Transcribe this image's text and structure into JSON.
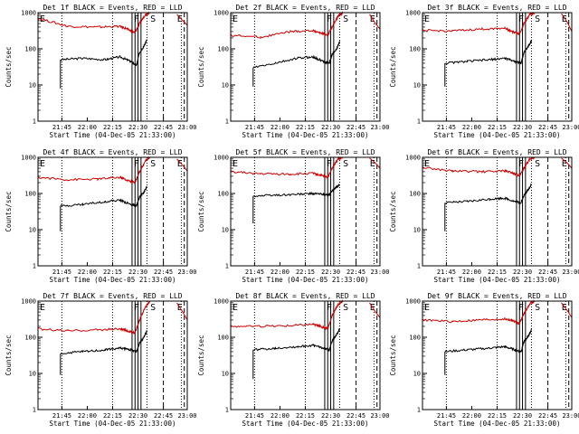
{
  "chart_data": [
    {
      "type": "line",
      "title": "Det 1f BLACK = Events, RED = LLD",
      "xlabel": "Start Time (04-Dec-05 21:33:00)",
      "ylabel": "Counts/sec",
      "yscale": "log",
      "ylim": [
        1,
        1000
      ],
      "x_ticks": [
        "21:45",
        "22:00",
        "22:15",
        "22:30",
        "22:45",
        "23:00"
      ],
      "y_ticks": [
        "1",
        "10",
        "100",
        "1000"
      ],
      "region_marks": [
        "F",
        "S",
        "E"
      ],
      "series": [
        {
          "color": "#000000",
          "keypoints": [
            [
              0.15,
              50
            ],
            [
              0.3,
              55
            ],
            [
              0.45,
              50
            ],
            [
              0.55,
              60
            ],
            [
              0.62,
              45
            ],
            [
              0.66,
              35
            ],
            [
              0.68,
              80
            ],
            [
              0.71,
              120
            ],
            [
              0.73,
              180
            ]
          ],
          "start_drop": 8
        },
        {
          "color": "#cc0000",
          "keypoints": [
            [
              0.0,
              700
            ],
            [
              0.2,
              420
            ],
            [
              0.4,
              400
            ],
            [
              0.55,
              420
            ],
            [
              0.6,
              350
            ],
            [
              0.65,
              280
            ],
            [
              0.68,
              500
            ],
            [
              0.72,
              900
            ],
            [
              0.75,
              1000
            ]
          ],
          "tail": [
            [
              0.93,
              900
            ],
            [
              0.97,
              600
            ],
            [
              1.0,
              450
            ]
          ]
        }
      ]
    },
    {
      "type": "line",
      "title": "Det 2f BLACK = Events, RED = LLD",
      "xlabel": "Start Time (04-Dec-05 21:33:00)",
      "ylabel": "Counts/sec",
      "yscale": "log",
      "ylim": [
        1,
        1000
      ],
      "x_ticks": [
        "21:45",
        "22:00",
        "22:15",
        "22:30",
        "22:45",
        "23:00"
      ],
      "y_ticks": [
        "1",
        "10",
        "100",
        "1000"
      ],
      "region_marks": [
        "F",
        "S",
        "E"
      ],
      "series": [
        {
          "color": "#000000",
          "keypoints": [
            [
              0.15,
              30
            ],
            [
              0.3,
              40
            ],
            [
              0.45,
              55
            ],
            [
              0.55,
              60
            ],
            [
              0.62,
              45
            ],
            [
              0.66,
              40
            ],
            [
              0.68,
              70
            ],
            [
              0.71,
              100
            ],
            [
              0.73,
              160
            ]
          ],
          "start_drop": 9
        },
        {
          "color": "#cc0000",
          "keypoints": [
            [
              0.0,
              240
            ],
            [
              0.2,
              210
            ],
            [
              0.4,
              300
            ],
            [
              0.55,
              320
            ],
            [
              0.6,
              280
            ],
            [
              0.65,
              230
            ],
            [
              0.68,
              400
            ],
            [
              0.72,
              800
            ],
            [
              0.75,
              1000
            ]
          ],
          "tail": [
            [
              0.93,
              900
            ],
            [
              0.97,
              500
            ],
            [
              1.0,
              350
            ]
          ]
        }
      ]
    },
    {
      "type": "line",
      "title": "Det 3f BLACK = Events, RED = LLD",
      "xlabel": "Start Time (04-Dec-05 21:33:00)",
      "ylabel": "Counts/sec",
      "yscale": "log",
      "ylim": [
        1,
        1000
      ],
      "x_ticks": [
        "21:45",
        "22:00",
        "22:15",
        "22:30",
        "22:45",
        "23:00"
      ],
      "y_ticks": [
        "1",
        "10",
        "100",
        "1000"
      ],
      "region_marks": [
        "F",
        "S",
        "E"
      ],
      "series": [
        {
          "color": "#000000",
          "keypoints": [
            [
              0.15,
              40
            ],
            [
              0.3,
              45
            ],
            [
              0.45,
              50
            ],
            [
              0.55,
              55
            ],
            [
              0.62,
              45
            ],
            [
              0.66,
              40
            ],
            [
              0.68,
              80
            ],
            [
              0.71,
              120
            ],
            [
              0.73,
              170
            ]
          ],
          "start_drop": 9
        },
        {
          "color": "#cc0000",
          "keypoints": [
            [
              0.0,
              320
            ],
            [
              0.2,
              310
            ],
            [
              0.4,
              350
            ],
            [
              0.55,
              380
            ],
            [
              0.6,
              300
            ],
            [
              0.65,
              260
            ],
            [
              0.68,
              500
            ],
            [
              0.72,
              900
            ],
            [
              0.75,
              1000
            ]
          ],
          "tail": [
            [
              0.93,
              950
            ],
            [
              0.97,
              550
            ],
            [
              1.0,
              300
            ]
          ]
        }
      ]
    },
    {
      "type": "line",
      "title": "Det 4f BLACK = Events, RED = LLD",
      "xlabel": "Start Time (04-Dec-05 21:33:00)",
      "ylabel": "Counts/sec",
      "yscale": "log",
      "ylim": [
        1,
        1000
      ],
      "x_ticks": [
        "21:45",
        "22:00",
        "22:15",
        "22:30",
        "22:45",
        "23:00"
      ],
      "y_ticks": [
        "1",
        "10",
        "100",
        "1000"
      ],
      "region_marks": [
        "F",
        "S",
        "E"
      ],
      "series": [
        {
          "color": "#000000",
          "keypoints": [
            [
              0.15,
              45
            ],
            [
              0.3,
              50
            ],
            [
              0.45,
              60
            ],
            [
              0.55,
              65
            ],
            [
              0.62,
              50
            ],
            [
              0.66,
              45
            ],
            [
              0.68,
              80
            ],
            [
              0.71,
              110
            ],
            [
              0.73,
              150
            ]
          ],
          "start_drop": 9
        },
        {
          "color": "#cc0000",
          "keypoints": [
            [
              0.0,
              280
            ],
            [
              0.2,
              240
            ],
            [
              0.4,
              250
            ],
            [
              0.55,
              280
            ],
            [
              0.6,
              230
            ],
            [
              0.65,
              200
            ],
            [
              0.68,
              400
            ],
            [
              0.72,
              800
            ],
            [
              0.75,
              1000
            ]
          ],
          "tail": [
            [
              0.93,
              900
            ],
            [
              0.97,
              600
            ],
            [
              1.0,
              420
            ]
          ]
        }
      ]
    },
    {
      "type": "line",
      "title": "Det 5f BLACK = Events, RED = LLD",
      "xlabel": "Start Time (04-Dec-05 21:33:00)",
      "ylabel": "Counts/sec",
      "yscale": "log",
      "ylim": [
        1,
        1000
      ],
      "x_ticks": [
        "21:45",
        "22:00",
        "22:15",
        "22:30",
        "22:45",
        "23:00"
      ],
      "y_ticks": [
        "1",
        "10",
        "100",
        "1000"
      ],
      "region_marks": [
        "F",
        "S",
        "E"
      ],
      "series": [
        {
          "color": "#000000",
          "keypoints": [
            [
              0.15,
              85
            ],
            [
              0.3,
              90
            ],
            [
              0.45,
              95
            ],
            [
              0.55,
              100
            ],
            [
              0.62,
              95
            ],
            [
              0.66,
              90
            ],
            [
              0.68,
              120
            ],
            [
              0.71,
              150
            ],
            [
              0.73,
              180
            ]
          ],
          "start_drop": 15
        },
        {
          "color": "#cc0000",
          "keypoints": [
            [
              0.0,
              400
            ],
            [
              0.2,
              350
            ],
            [
              0.4,
              340
            ],
            [
              0.55,
              360
            ],
            [
              0.6,
              320
            ],
            [
              0.65,
              280
            ],
            [
              0.68,
              500
            ],
            [
              0.72,
              900
            ],
            [
              0.75,
              1000
            ]
          ],
          "tail": [
            [
              0.93,
              950
            ],
            [
              0.97,
              700
            ],
            [
              1.0,
              500
            ]
          ]
        }
      ]
    },
    {
      "type": "line",
      "title": "Det 6f BLACK = Events, RED = LLD",
      "xlabel": "Start Time (04-Dec-05 21:33:00)",
      "ylabel": "Counts/sec",
      "yscale": "log",
      "ylim": [
        1,
        1000
      ],
      "x_ticks": [
        "21:45",
        "22:00",
        "22:15",
        "22:30",
        "22:45",
        "23:00"
      ],
      "y_ticks": [
        "1",
        "10",
        "100",
        "1000"
      ],
      "region_marks": [
        "F",
        "S",
        "E"
      ],
      "series": [
        {
          "color": "#000000",
          "keypoints": [
            [
              0.15,
              55
            ],
            [
              0.3,
              60
            ],
            [
              0.45,
              70
            ],
            [
              0.55,
              75
            ],
            [
              0.62,
              60
            ],
            [
              0.66,
              55
            ],
            [
              0.68,
              90
            ],
            [
              0.71,
              130
            ],
            [
              0.73,
              180
            ]
          ],
          "start_drop": 9
        },
        {
          "color": "#cc0000",
          "keypoints": [
            [
              0.0,
              520
            ],
            [
              0.2,
              420
            ],
            [
              0.4,
              400
            ],
            [
              0.55,
              420
            ],
            [
              0.6,
              380
            ],
            [
              0.65,
              300
            ],
            [
              0.68,
              500
            ],
            [
              0.72,
              900
            ],
            [
              0.75,
              1000
            ]
          ],
          "tail": [
            [
              0.93,
              950
            ],
            [
              0.97,
              700
            ],
            [
              1.0,
              500
            ]
          ]
        }
      ]
    },
    {
      "type": "line",
      "title": "Det 7f BLACK = Events, RED = LLD",
      "xlabel": "Start Time (04-Dec-05 21:33:00)",
      "ylabel": "Counts/sec",
      "yscale": "log",
      "ylim": [
        1,
        1000
      ],
      "x_ticks": [
        "21:45",
        "22:00",
        "22:15",
        "22:30",
        "22:45",
        "23:00"
      ],
      "y_ticks": [
        "1",
        "10",
        "100",
        "1000"
      ],
      "region_marks": [
        "F",
        "S",
        "E"
      ],
      "series": [
        {
          "color": "#000000",
          "keypoints": [
            [
              0.15,
              35
            ],
            [
              0.3,
              40
            ],
            [
              0.45,
              45
            ],
            [
              0.55,
              50
            ],
            [
              0.62,
              45
            ],
            [
              0.66,
              40
            ],
            [
              0.68,
              70
            ],
            [
              0.71,
              100
            ],
            [
              0.73,
              150
            ]
          ],
          "start_drop": 9
        },
        {
          "color": "#cc0000",
          "keypoints": [
            [
              0.0,
              170
            ],
            [
              0.2,
              150
            ],
            [
              0.4,
              160
            ],
            [
              0.55,
              170
            ],
            [
              0.6,
              150
            ],
            [
              0.65,
              130
            ],
            [
              0.68,
              300
            ],
            [
              0.72,
              700
            ],
            [
              0.75,
              1000
            ]
          ],
          "tail": [
            [
              0.93,
              900
            ],
            [
              0.97,
              500
            ],
            [
              1.0,
              300
            ]
          ]
        }
      ]
    },
    {
      "type": "line",
      "title": "Det 8f BLACK = Events, RED = LLD",
      "xlabel": "Start Time (04-Dec-05 21:33:00)",
      "ylabel": "Counts/sec",
      "yscale": "log",
      "ylim": [
        1,
        1000
      ],
      "x_ticks": [
        "21:45",
        "22:00",
        "22:15",
        "22:30",
        "22:45",
        "23:00"
      ],
      "y_ticks": [
        "1",
        "10",
        "100",
        "1000"
      ],
      "region_marks": [
        "F",
        "S",
        "E"
      ],
      "series": [
        {
          "color": "#000000",
          "keypoints": [
            [
              0.15,
              45
            ],
            [
              0.3,
              50
            ],
            [
              0.45,
              55
            ],
            [
              0.55,
              60
            ],
            [
              0.62,
              50
            ],
            [
              0.66,
              45
            ],
            [
              0.68,
              80
            ],
            [
              0.71,
              120
            ],
            [
              0.73,
              170
            ]
          ],
          "start_drop": 7
        },
        {
          "color": "#cc0000",
          "keypoints": [
            [
              0.0,
              200
            ],
            [
              0.2,
              200
            ],
            [
              0.4,
              210
            ],
            [
              0.55,
              230
            ],
            [
              0.6,
              200
            ],
            [
              0.65,
              170
            ],
            [
              0.68,
              400
            ],
            [
              0.72,
              800
            ],
            [
              0.75,
              1000
            ]
          ],
          "tail": [
            [
              0.93,
              900
            ],
            [
              0.97,
              500
            ],
            [
              1.0,
              350
            ]
          ]
        }
      ]
    },
    {
      "type": "line",
      "title": "Det 9f BLACK = Events, RED = LLD",
      "xlabel": "Start Time (04-Dec-05 21:33:00)",
      "ylabel": "Counts/sec",
      "yscale": "log",
      "ylim": [
        1,
        1000
      ],
      "x_ticks": [
        "21:45",
        "22:00",
        "22:15",
        "22:30",
        "22:45",
        "23:00"
      ],
      "y_ticks": [
        "1",
        "10",
        "100",
        "1000"
      ],
      "region_marks": [
        "F",
        "S",
        "E"
      ],
      "series": [
        {
          "color": "#000000",
          "keypoints": [
            [
              0.15,
              40
            ],
            [
              0.3,
              45
            ],
            [
              0.45,
              50
            ],
            [
              0.55,
              55
            ],
            [
              0.62,
              45
            ],
            [
              0.66,
              40
            ],
            [
              0.68,
              75
            ],
            [
              0.71,
              110
            ],
            [
              0.73,
              160
            ]
          ],
          "start_drop": 9
        },
        {
          "color": "#cc0000",
          "keypoints": [
            [
              0.0,
              300
            ],
            [
              0.2,
              270
            ],
            [
              0.4,
              300
            ],
            [
              0.55,
              320
            ],
            [
              0.6,
              290
            ],
            [
              0.65,
              240
            ],
            [
              0.68,
              450
            ],
            [
              0.72,
              850
            ],
            [
              0.75,
              1000
            ]
          ],
          "tail": [
            [
              0.93,
              900
            ],
            [
              0.97,
              550
            ],
            [
              1.0,
              350
            ]
          ]
        }
      ]
    }
  ]
}
